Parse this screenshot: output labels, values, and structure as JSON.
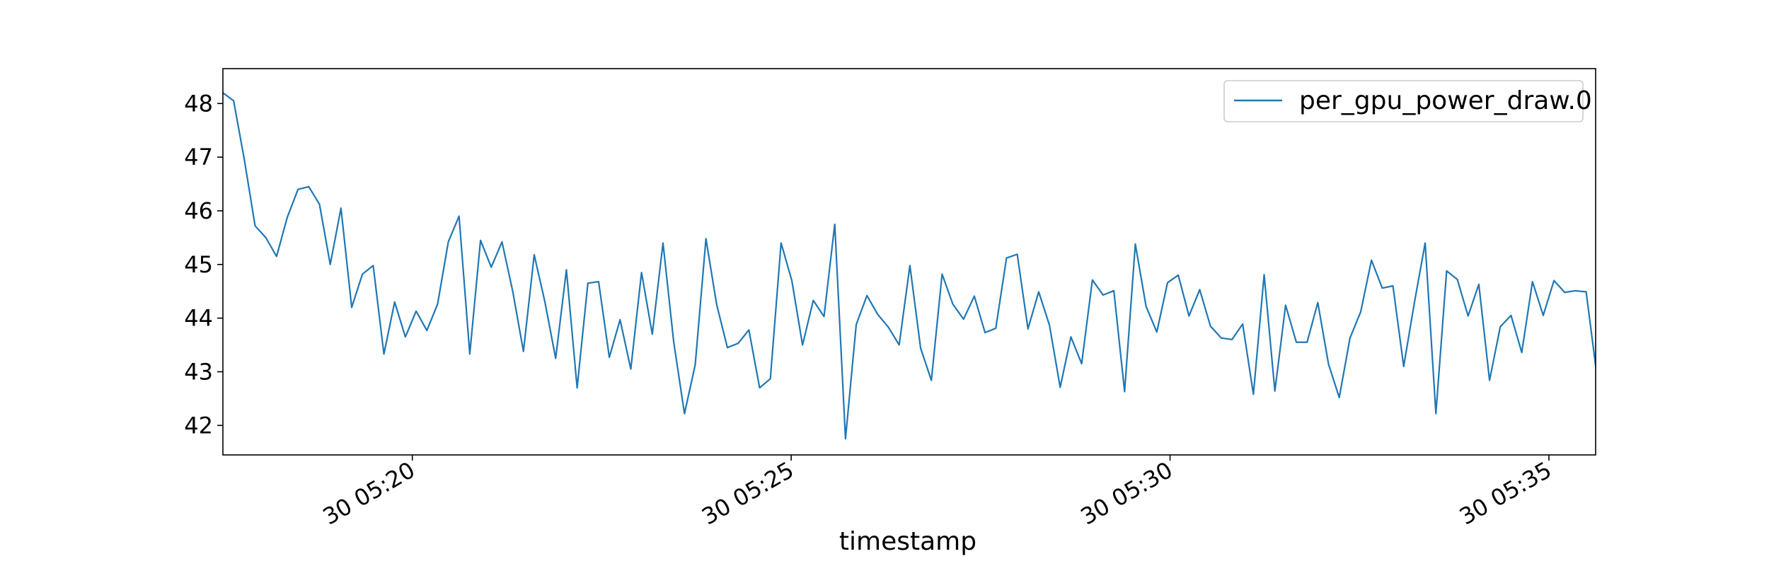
{
  "chart_data": {
    "type": "line",
    "title": "",
    "xlabel": "timestamp",
    "ylabel": "",
    "x_ticks": [
      {
        "t": 1200,
        "label": "30 05:20"
      },
      {
        "t": 1500,
        "label": "30 05:25"
      },
      {
        "t": 1800,
        "label": "30 05:30"
      },
      {
        "t": 2100,
        "label": "30 05:35"
      }
    ],
    "y_ticks": [
      42,
      43,
      44,
      45,
      46,
      47,
      48
    ],
    "xlim": [
      1050,
      2137
    ],
    "ylim": [
      41.45,
      48.65
    ],
    "x_unit": "seconds after 30 05:00",
    "legend": {
      "position": "top-right",
      "color": "#1f77b4"
    },
    "grid": false,
    "series": [
      {
        "name": "per_gpu_power_draw.0",
        "color": "#1f77b4",
        "sample_interval_s": 8.5,
        "x_start": 1050,
        "values": [
          48.2,
          48.05,
          46.95,
          45.72,
          45.5,
          45.15,
          45.88,
          46.4,
          46.45,
          46.12,
          45.0,
          46.05,
          44.2,
          44.82,
          44.98,
          43.33,
          44.3,
          43.65,
          44.13,
          43.77,
          44.26,
          45.42,
          45.9,
          43.33,
          45.45,
          44.95,
          45.42,
          44.5,
          43.38,
          45.18,
          44.3,
          43.25,
          44.9,
          42.7,
          44.65,
          44.68,
          43.27,
          43.97,
          43.05,
          44.85,
          43.7,
          45.4,
          43.55,
          42.22,
          43.13,
          45.48,
          44.25,
          43.45,
          43.53,
          43.78,
          42.7,
          42.87,
          45.4,
          44.7,
          43.5,
          44.33,
          44.03,
          45.75,
          41.75,
          43.88,
          44.42,
          44.07,
          43.83,
          43.5,
          44.98,
          43.44,
          42.84,
          44.82,
          44.26,
          43.98,
          44.41,
          43.73,
          43.81,
          45.12,
          45.19,
          43.8,
          44.49,
          43.87,
          42.71,
          43.65,
          43.15,
          44.71,
          44.43,
          44.51,
          42.63,
          45.38,
          44.22,
          43.74,
          44.66,
          44.8,
          44.04,
          44.53,
          43.85,
          43.63,
          43.6,
          43.89,
          42.58,
          44.81,
          42.64,
          44.24,
          43.55,
          43.55,
          44.29,
          43.14,
          42.52,
          43.63,
          44.12,
          45.08,
          44.56,
          44.6,
          43.1,
          44.29,
          45.4,
          42.22,
          44.88,
          44.72,
          44.04,
          44.63,
          42.84,
          43.84,
          44.05,
          43.36,
          44.68,
          44.05,
          44.7,
          44.48,
          44.51,
          44.49,
          42.93
        ]
      }
    ]
  }
}
